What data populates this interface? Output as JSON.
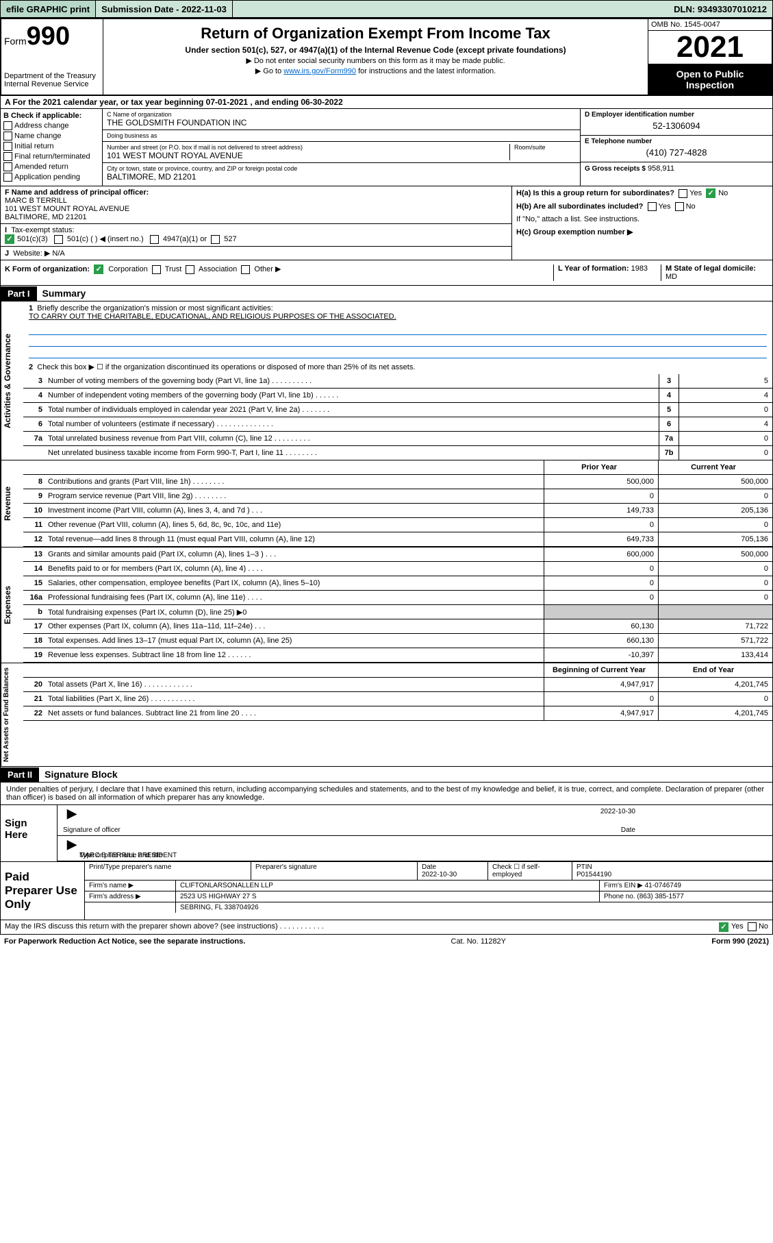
{
  "topbar": {
    "efile": "efile GRAPHIC print",
    "submission": "Submission Date - 2022-11-03",
    "dln": "DLN: 93493307010212"
  },
  "header": {
    "form_word": "Form",
    "form_num": "990",
    "dept": "Department of the Treasury",
    "irs": "Internal Revenue Service",
    "title": "Return of Organization Exempt From Income Tax",
    "sub1": "Under section 501(c), 527, or 4947(a)(1) of the Internal Revenue Code (except private foundations)",
    "sub2": "▶ Do not enter social security numbers on this form as it may be made public.",
    "sub3_pre": "▶ Go to ",
    "sub3_link": "www.irs.gov/Form990",
    "sub3_post": " for instructions and the latest information.",
    "omb": "OMB No. 1545-0047",
    "year": "2021",
    "open": "Open to Public Inspection"
  },
  "row_a": "A For the 2021 calendar year, or tax year beginning 07-01-2021   , and ending 06-30-2022",
  "col_b": {
    "hdr": "B Check if applicable:",
    "items": [
      "Address change",
      "Name change",
      "Initial return",
      "Final return/terminated",
      "Amended return",
      "Application pending"
    ]
  },
  "col_c": {
    "name_lbl": "C Name of organization",
    "name": "THE GOLDSMITH FOUNDATION INC",
    "dba_lbl": "Doing business as",
    "dba": "",
    "addr_lbl": "Number and street (or P.O. box if mail is not delivered to street address)",
    "room_lbl": "Room/suite",
    "addr": "101 WEST MOUNT ROYAL AVENUE",
    "city_lbl": "City or town, state or province, country, and ZIP or foreign postal code",
    "city": "BALTIMORE, MD  21201"
  },
  "col_d": {
    "ein_lbl": "D Employer identification number",
    "ein": "52-1306094",
    "phone_lbl": "E Telephone number",
    "phone": "(410) 727-4828",
    "gross_lbl": "G Gross receipts $",
    "gross": "958,911"
  },
  "block_f": {
    "f_lbl": "F Name and address of principal officer:",
    "f_name": "MARC B TERRILL",
    "f_addr1": "101 WEST MOUNT ROYAL AVENUE",
    "f_addr2": "BALTIMORE, MD  21201",
    "i_lbl": "Tax-exempt status:",
    "i_501c3": "501(c)(3)",
    "i_501c": "501(c) (  ) ◀ (insert no.)",
    "i_4947": "4947(a)(1) or",
    "i_527": "527",
    "j_lbl": "Website: ▶",
    "j_val": "N/A"
  },
  "block_h": {
    "ha_lbl": "H(a)  Is this a group return for subordinates?",
    "ha_yes": "Yes",
    "ha_no": "No",
    "hb_lbl": "H(b)  Are all subordinates included?",
    "hb_yes": "Yes",
    "hb_no": "No",
    "hb_note": "If \"No,\" attach a list. See instructions.",
    "hc_lbl": "H(c)  Group exemption number ▶"
  },
  "block_klm": {
    "k": "K Form of organization:",
    "k_corp": "Corporation",
    "k_trust": "Trust",
    "k_assoc": "Association",
    "k_other": "Other ▶",
    "l_lbl": "L Year of formation:",
    "l_val": "1983",
    "m_lbl": "M State of legal domicile:",
    "m_val": "MD"
  },
  "part1": {
    "hdr": "Part I",
    "title": "Summary",
    "line1_lbl": "Briefly describe the organization's mission or most significant activities:",
    "line1_val": "TO CARRY OUT THE CHARITABLE, EDUCATIONAL, AND RELIGIOUS PURPOSES OF THE ASSOCIATED.",
    "line2": "Check this box ▶ ☐  if the organization discontinued its operations or disposed of more than 25% of its net assets.",
    "rows_gov": [
      {
        "n": "3",
        "t": "Number of voting members of the governing body (Part VI, line 1a)   .    .    .    .    .    .    .    .    .    .",
        "b": "3",
        "v": "5"
      },
      {
        "n": "4",
        "t": "Number of independent voting members of the governing body (Part VI, line 1b)    .    .    .    .    .    .",
        "b": "4",
        "v": "4"
      },
      {
        "n": "5",
        "t": "Total number of individuals employed in calendar year 2021 (Part V, line 2a)    .    .    .    .    .    .    .",
        "b": "5",
        "v": "0"
      },
      {
        "n": "6",
        "t": "Total number of volunteers (estimate if necessary)    .    .    .    .    .    .    .    .    .    .    .    .    .    .",
        "b": "6",
        "v": "4"
      },
      {
        "n": "7a",
        "t": "Total unrelated business revenue from Part VIII, column (C), line 12    .    .    .    .    .    .    .    .    .",
        "b": "7a",
        "v": "0"
      },
      {
        "n": "",
        "t": "Net unrelated business taxable income from Form 990-T, Part I, line 11    .    .    .    .    .    .    .    .",
        "b": "7b",
        "v": "0"
      }
    ],
    "col_prior": "Prior Year",
    "col_curr": "Current Year",
    "rows_rev": [
      {
        "n": "8",
        "t": "Contributions and grants (Part VIII, line 1h)    .    .    .    .    .    .    .    .",
        "p": "500,000",
        "c": "500,000"
      },
      {
        "n": "9",
        "t": "Program service revenue (Part VIII, line 2g)    .    .    .    .    .    .    .    .",
        "p": "0",
        "c": "0"
      },
      {
        "n": "10",
        "t": "Investment income (Part VIII, column (A), lines 3, 4, and 7d )    .    .    .",
        "p": "149,733",
        "c": "205,136"
      },
      {
        "n": "11",
        "t": "Other revenue (Part VIII, column (A), lines 5, 6d, 8c, 9c, 10c, and 11e)",
        "p": "0",
        "c": "0"
      },
      {
        "n": "12",
        "t": "Total revenue—add lines 8 through 11 (must equal Part VIII, column (A), line 12)",
        "p": "649,733",
        "c": "705,136"
      }
    ],
    "rows_exp": [
      {
        "n": "13",
        "t": "Grants and similar amounts paid (Part IX, column (A), lines 1–3 )    .    .    .",
        "p": "600,000",
        "c": "500,000"
      },
      {
        "n": "14",
        "t": "Benefits paid to or for members (Part IX, column (A), line 4)    .    .    .    .",
        "p": "0",
        "c": "0"
      },
      {
        "n": "15",
        "t": "Salaries, other compensation, employee benefits (Part IX, column (A), lines 5–10)",
        "p": "0",
        "c": "0"
      },
      {
        "n": "16a",
        "t": "Professional fundraising fees (Part IX, column (A), line 11e)    .    .    .    .",
        "p": "0",
        "c": "0"
      },
      {
        "n": "b",
        "t": "Total fundraising expenses (Part IX, column (D), line 25) ▶0",
        "p": "shade",
        "c": "shade"
      },
      {
        "n": "17",
        "t": "Other expenses (Part IX, column (A), lines 11a–11d, 11f–24e)    .    .    .",
        "p": "60,130",
        "c": "71,722"
      },
      {
        "n": "18",
        "t": "Total expenses. Add lines 13–17 (must equal Part IX, column (A), line 25)",
        "p": "660,130",
        "c": "571,722"
      },
      {
        "n": "19",
        "t": "Revenue less expenses. Subtract line 18 from line 12    .    .    .    .    .    .",
        "p": "-10,397",
        "c": "133,414"
      }
    ],
    "col_beg": "Beginning of Current Year",
    "col_end": "End of Year",
    "rows_net": [
      {
        "n": "20",
        "t": "Total assets (Part X, line 16)    .    .    .    .    .    .    .    .    .    .    .    .",
        "p": "4,947,917",
        "c": "4,201,745"
      },
      {
        "n": "21",
        "t": "Total liabilities (Part X, line 26)    .    .    .    .    .    .    .    .    .    .    .",
        "p": "0",
        "c": "0"
      },
      {
        "n": "22",
        "t": "Net assets or fund balances. Subtract line 21 from line 20    .    .    .    .",
        "p": "4,947,917",
        "c": "4,201,745"
      }
    ],
    "side_gov": "Activities & Governance",
    "side_rev": "Revenue",
    "side_exp": "Expenses",
    "side_net": "Net Assets or Fund Balances"
  },
  "part2": {
    "hdr": "Part II",
    "title": "Signature Block",
    "decl": "Under penalties of perjury, I declare that I have examined this return, including accompanying schedules and statements, and to the best of my knowledge and belief, it is true, correct, and complete. Declaration of preparer (other than officer) is based on all information of which preparer has any knowledge.",
    "sign_here": "Sign Here",
    "sig_officer": "Signature of officer",
    "sig_date": "2022-10-30",
    "sig_date_lbl": "Date",
    "sig_name": "MARC B TERRILL PRESIDENT",
    "sig_name_lbl": "Type or print name and title",
    "paid": "Paid Preparer Use Only",
    "prep_name_lbl": "Print/Type preparer's name",
    "prep_sig_lbl": "Preparer's signature",
    "prep_date_lbl": "Date",
    "prep_date": "2022-10-30",
    "prep_check_lbl": "Check ☐ if self-employed",
    "prep_ptin_lbl": "PTIN",
    "prep_ptin": "P01544190",
    "firm_name_lbl": "Firm's name    ▶",
    "firm_name": "CLIFTONLARSONALLEN LLP",
    "firm_ein_lbl": "Firm's EIN ▶",
    "firm_ein": "41-0746749",
    "firm_addr_lbl": "Firm's address ▶",
    "firm_addr1": "2523 US HIGHWAY 27 S",
    "firm_addr2": "SEBRING, FL  338704926",
    "firm_phone_lbl": "Phone no.",
    "firm_phone": "(863) 385-1577",
    "discuss": "May the IRS discuss this return with the preparer shown above? (see instructions)    .    .    .    .    .    .    .    .    .    .    .",
    "discuss_yes": "Yes",
    "discuss_no": "No"
  },
  "footer": {
    "left": "For Paperwork Reduction Act Notice, see the separate instructions.",
    "mid": "Cat. No. 11282Y",
    "right": "Form 990 (2021)"
  }
}
